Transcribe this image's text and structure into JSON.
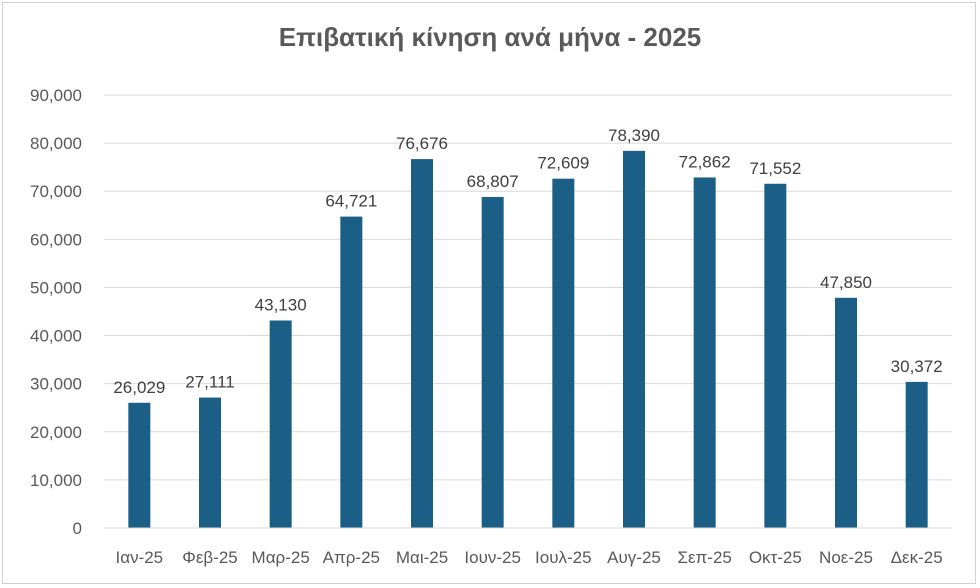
{
  "chart_data": {
    "type": "bar",
    "title": "Επιβατική κίνηση ανά μήνα - 2025",
    "xlabel": "",
    "ylabel": "",
    "categories": [
      "Ιαν-25",
      "Φεβ-25",
      "Μαρ-25",
      "Απρ-25",
      "Μαι-25",
      "Ιουν-25",
      "Ιουλ-25",
      "Αυγ-25",
      "Σεπ-25",
      "Οκτ-25",
      "Νοε-25",
      "Δεκ-25"
    ],
    "values": [
      26029,
      27111,
      43130,
      64721,
      76676,
      68807,
      72609,
      78390,
      72862,
      71552,
      47850,
      30372
    ],
    "data_labels": [
      "26,029",
      "27,111",
      "43,130",
      "64,721",
      "76,676",
      "68,807",
      "72,609",
      "78,390",
      "72,862",
      "71,552",
      "47,850",
      "30,372"
    ],
    "y_ticks": [
      "0",
      "10,000",
      "20,000",
      "30,000",
      "40,000",
      "50,000",
      "60,000",
      "70,000",
      "80,000",
      "90,000"
    ],
    "ylim": [
      0,
      90000
    ],
    "grid": true,
    "legend": "none",
    "bar_color": "#1b5e86",
    "grid_color": "#d9d9d9"
  }
}
